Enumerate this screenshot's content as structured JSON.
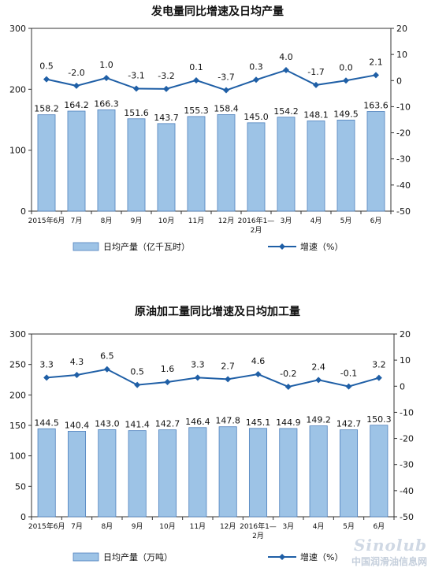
{
  "chart_data": [
    {
      "type": "bar",
      "title": "发电量同比增速及日均产量",
      "categories": [
        "2015年6月",
        "7月",
        "8月",
        "9月",
        "10月",
        "11月",
        "12月",
        "2016年1—2月",
        "3月",
        "4月",
        "5月",
        "6月"
      ],
      "series": [
        {
          "name": "日均产量（亿千瓦时）",
          "type": "bar",
          "axis": "left",
          "values": [
            158.2,
            164.2,
            166.3,
            151.6,
            143.7,
            155.3,
            158.4,
            145.0,
            154.2,
            148.1,
            149.5,
            163.6
          ],
          "labels": [
            "158.2",
            "164.2",
            "166.3",
            "151.6",
            "143.7",
            "155.3",
            "158.4",
            "145.0",
            "154.2",
            "148.1",
            "149.5",
            "163.6"
          ]
        },
        {
          "name": "增速（%）",
          "type": "line",
          "axis": "right",
          "values": [
            0.5,
            -2.0,
            1.0,
            -3.1,
            -3.2,
            0.1,
            -3.7,
            0.3,
            4.0,
            -1.7,
            0.0,
            2.1
          ],
          "labels": [
            "0.5",
            "-2.0",
            "1.0",
            "-3.1",
            "-3.2",
            "0.1",
            "-3.7",
            "0.3",
            "4.0",
            "-1.7",
            "0.0",
            "2.1"
          ]
        }
      ],
      "ylim": [
        0,
        300
      ],
      "yticks": [
        0,
        100,
        200,
        300
      ],
      "y2lim": [
        -50,
        20
      ],
      "y2ticks": [
        -50,
        -40,
        -30,
        -20,
        -10,
        0,
        10,
        20
      ],
      "legend_position": "bottom",
      "colors": {
        "bar": "#9dc3e6",
        "bar_stroke": "#4f81bd",
        "line": "#1f5fa6"
      }
    },
    {
      "type": "bar",
      "title": "原油加工量同比增速及日均加工量",
      "categories": [
        "2015年6月",
        "7月",
        "8月",
        "9月",
        "10月",
        "11月",
        "12月",
        "2016年1—2月",
        "3月",
        "4月",
        "5月",
        "6月"
      ],
      "series": [
        {
          "name": "日均产量（万吨）",
          "type": "bar",
          "axis": "left",
          "values": [
            144.5,
            140.4,
            143.0,
            141.4,
            142.7,
            146.4,
            147.8,
            145.1,
            144.9,
            149.2,
            142.7,
            150.3
          ],
          "labels": [
            "144.5",
            "140.4",
            "143.0",
            "141.4",
            "142.7",
            "146.4",
            "147.8",
            "145.1",
            "144.9",
            "149.2",
            "142.7",
            "150.3"
          ]
        },
        {
          "name": "增速（%）",
          "type": "line",
          "axis": "right",
          "values": [
            3.3,
            4.3,
            6.5,
            0.5,
            1.6,
            3.3,
            2.7,
            4.6,
            -0.2,
            2.4,
            -0.1,
            3.2
          ],
          "labels": [
            "3.3",
            "4.3",
            "6.5",
            "0.5",
            "1.6",
            "3.3",
            "2.7",
            "4.6",
            "-0.2",
            "2.4",
            "-0.1",
            "3.2"
          ]
        }
      ],
      "ylim": [
        0,
        300
      ],
      "yticks": [
        0,
        50,
        100,
        150,
        200,
        250,
        300
      ],
      "y2lim": [
        -50,
        20
      ],
      "y2ticks": [
        -50,
        -40,
        -30,
        -20,
        -10,
        0,
        10,
        20
      ],
      "legend_position": "bottom",
      "colors": {
        "bar": "#9dc3e6",
        "bar_stroke": "#4f81bd",
        "line": "#1f5fa6"
      }
    }
  ],
  "watermark": {
    "logo_text": "Sinolub",
    "site_name": "中国润滑油信息网"
  }
}
